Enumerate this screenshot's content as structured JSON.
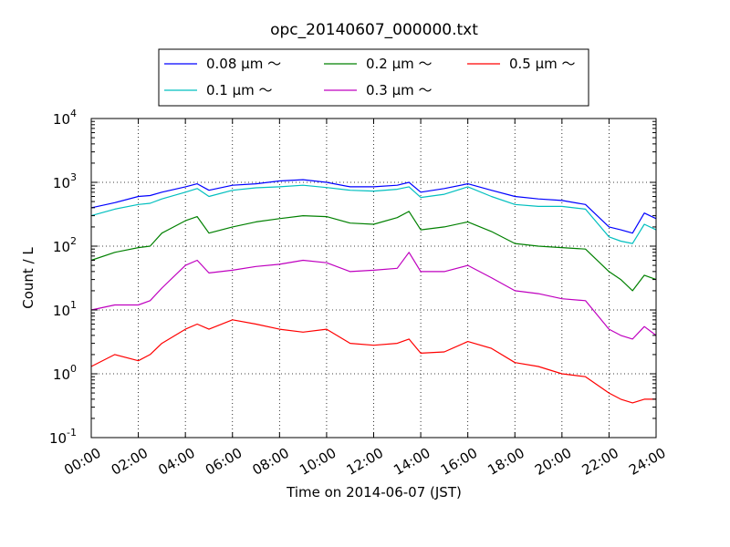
{
  "chart_data": {
    "type": "line",
    "title": "opc_20140607_000000.txt",
    "xlabel": "Time on 2014-06-07 (JST)",
    "ylabel": "Count / L",
    "y_scale": "log",
    "ylim": [
      0.1,
      10000
    ],
    "xlim": [
      "00:00",
      "24:00"
    ],
    "grid": true,
    "legend_position": "top, above plot",
    "x_ticks": [
      "00:00",
      "02:00",
      "04:00",
      "06:00",
      "08:00",
      "10:00",
      "12:00",
      "14:00",
      "16:00",
      "18:00",
      "20:00",
      "22:00",
      "24:00"
    ],
    "y_ticks": [
      {
        "base": "10",
        "exp": "-1"
      },
      {
        "base": "10",
        "exp": "0"
      },
      {
        "base": "10",
        "exp": "1"
      },
      {
        "base": "10",
        "exp": "2"
      },
      {
        "base": "10",
        "exp": "3"
      },
      {
        "base": "10",
        "exp": "4"
      }
    ],
    "x": [
      "00:00",
      "01:00",
      "02:00",
      "02:30",
      "03:00",
      "04:00",
      "04:30",
      "05:00",
      "06:00",
      "07:00",
      "08:00",
      "09:00",
      "10:00",
      "11:00",
      "12:00",
      "13:00",
      "13:30",
      "14:00",
      "15:00",
      "16:00",
      "17:00",
      "18:00",
      "19:00",
      "20:00",
      "21:00",
      "22:00",
      "22:30",
      "23:00",
      "23:30",
      "24:00"
    ],
    "series": [
      {
        "name": "0.08 μm ～",
        "color": "#0000ff",
        "values": [
          400,
          480,
          600,
          620,
          700,
          850,
          950,
          750,
          900,
          950,
          1050,
          1100,
          1000,
          850,
          850,
          900,
          1000,
          700,
          800,
          950,
          750,
          600,
          550,
          520,
          450,
          200,
          180,
          160,
          330,
          270
        ]
      },
      {
        "name": "0.1 μm ～",
        "color": "#00bfbf",
        "values": [
          300,
          380,
          450,
          470,
          550,
          700,
          800,
          600,
          750,
          820,
          850,
          900,
          830,
          750,
          730,
          780,
          850,
          580,
          650,
          850,
          600,
          450,
          420,
          420,
          380,
          140,
          120,
          110,
          220,
          180
        ]
      },
      {
        "name": "0.2 μm ～",
        "color": "#008000",
        "values": [
          60,
          80,
          95,
          100,
          160,
          250,
          290,
          160,
          200,
          240,
          270,
          300,
          290,
          230,
          220,
          280,
          350,
          180,
          200,
          240,
          170,
          110,
          100,
          95,
          90,
          40,
          30,
          20,
          35,
          30
        ]
      },
      {
        "name": "0.3 μm ～",
        "color": "#bf00bf",
        "values": [
          10,
          12,
          12,
          14,
          22,
          50,
          60,
          38,
          42,
          48,
          52,
          60,
          55,
          40,
          42,
          45,
          80,
          40,
          40,
          50,
          32,
          20,
          18,
          15,
          14,
          5,
          4,
          3.5,
          5.5,
          4
        ]
      },
      {
        "name": "0.5 μm ～",
        "color": "#ff0000",
        "values": [
          1.3,
          2,
          1.6,
          2,
          3,
          5,
          6,
          5,
          7,
          6,
          5,
          4.5,
          5,
          3,
          2.8,
          3,
          3.5,
          2.1,
          2.2,
          3.2,
          2.5,
          1.5,
          1.3,
          1,
          0.9,
          0.5,
          0.4,
          0.35,
          0.4,
          0.4
        ]
      }
    ]
  }
}
